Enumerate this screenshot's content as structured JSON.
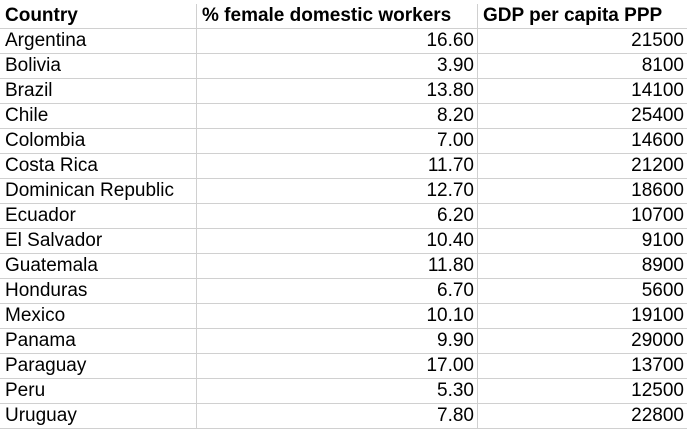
{
  "table": {
    "headers": [
      "Country",
      "% female domestic workers",
      "GDP per capita PPP"
    ],
    "rows": [
      [
        "Argentina",
        "16.60",
        "21500"
      ],
      [
        "Bolivia",
        "3.90",
        "8100"
      ],
      [
        "Brazil",
        "13.80",
        "14100"
      ],
      [
        "Chile",
        "8.20",
        "25400"
      ],
      [
        "Colombia",
        "7.00",
        "14600"
      ],
      [
        "Costa Rica",
        "11.70",
        "21200"
      ],
      [
        "Dominican Republic",
        "12.70",
        "18600"
      ],
      [
        "Ecuador",
        "6.20",
        "10700"
      ],
      [
        "El Salvador",
        "10.40",
        "9100"
      ],
      [
        "Guatemala",
        "11.80",
        "8900"
      ],
      [
        "Honduras",
        "6.70",
        "5600"
      ],
      [
        "Mexico",
        "10.10",
        "19100"
      ],
      [
        "Panama",
        "9.90",
        "29000"
      ],
      [
        "Paraguay",
        "17.00",
        "13700"
      ],
      [
        "Peru",
        "5.30",
        "12500"
      ],
      [
        "Uruguay",
        "7.80",
        "22800"
      ]
    ]
  }
}
